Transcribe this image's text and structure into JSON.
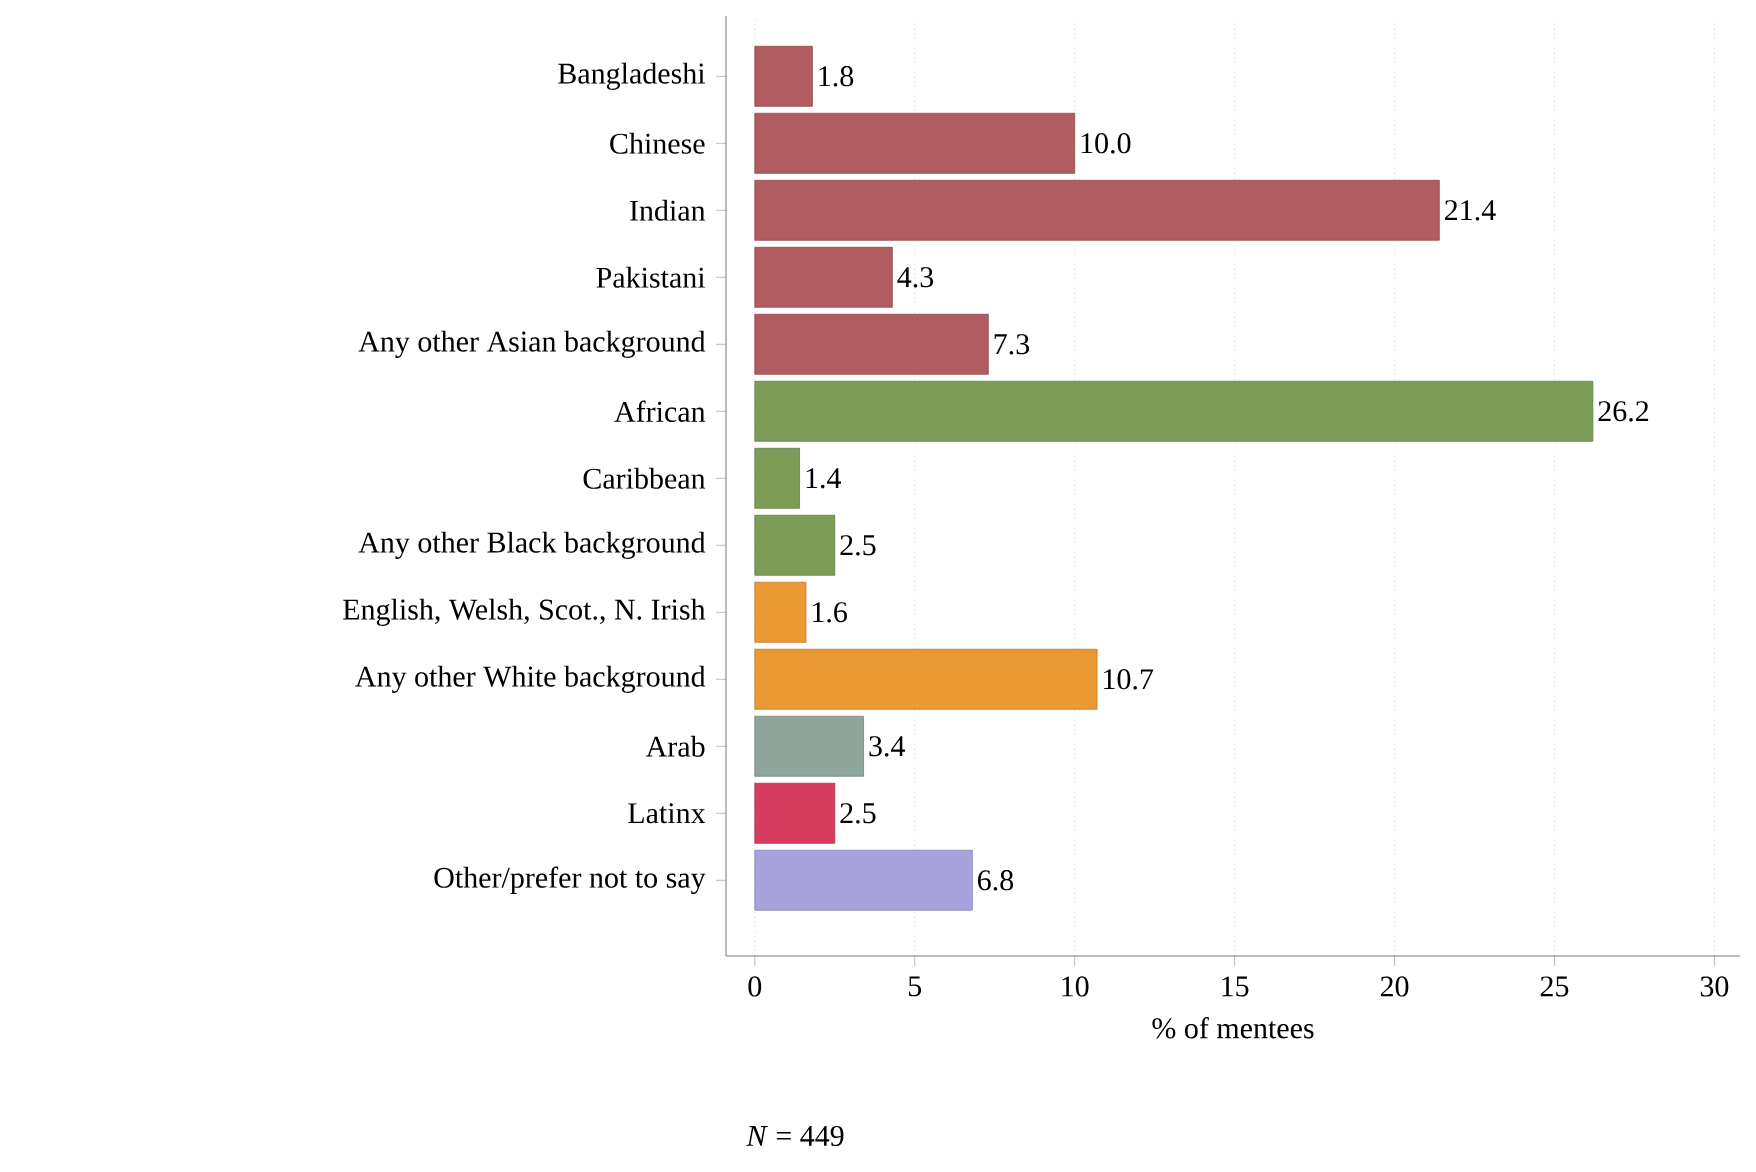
{
  "chart_data": {
    "type": "bar",
    "orientation": "horizontal",
    "categories": [
      "Bangladeshi",
      "Chinese",
      "Indian",
      "Pakistani",
      "Any other Asian background",
      "African",
      "Caribbean",
      "Any other Black background",
      "English, Welsh, Scot., N. Irish",
      "Any other White background",
      "Arab",
      "Latinx",
      "Other/prefer not to say"
    ],
    "values": [
      1.8,
      10.0,
      21.4,
      4.3,
      7.3,
      26.2,
      1.4,
      2.5,
      1.6,
      10.7,
      3.4,
      2.5,
      6.8
    ],
    "colors": [
      "#b05c60",
      "#b05c60",
      "#b05c60",
      "#b05c60",
      "#b05c60",
      "#7c9d58",
      "#7c9d58",
      "#7c9d58",
      "#ea9934",
      "#ea9934",
      "#8ea69c",
      "#d63c5e",
      "#a8a3dc"
    ],
    "xlim": [
      -0.9,
      30.8
    ],
    "xticks": [
      0,
      5,
      10,
      15,
      20,
      25,
      30
    ],
    "xlabel": "% of mentees",
    "grid": "x",
    "value_labels": [
      "1.8",
      "10.0",
      "21.4",
      "4.3",
      "7.3",
      "26.2",
      "1.4",
      "2.5",
      "1.6",
      "10.7",
      "3.4",
      "2.5",
      "6.8"
    ],
    "annotations": [
      "*N* = 449"
    ]
  }
}
